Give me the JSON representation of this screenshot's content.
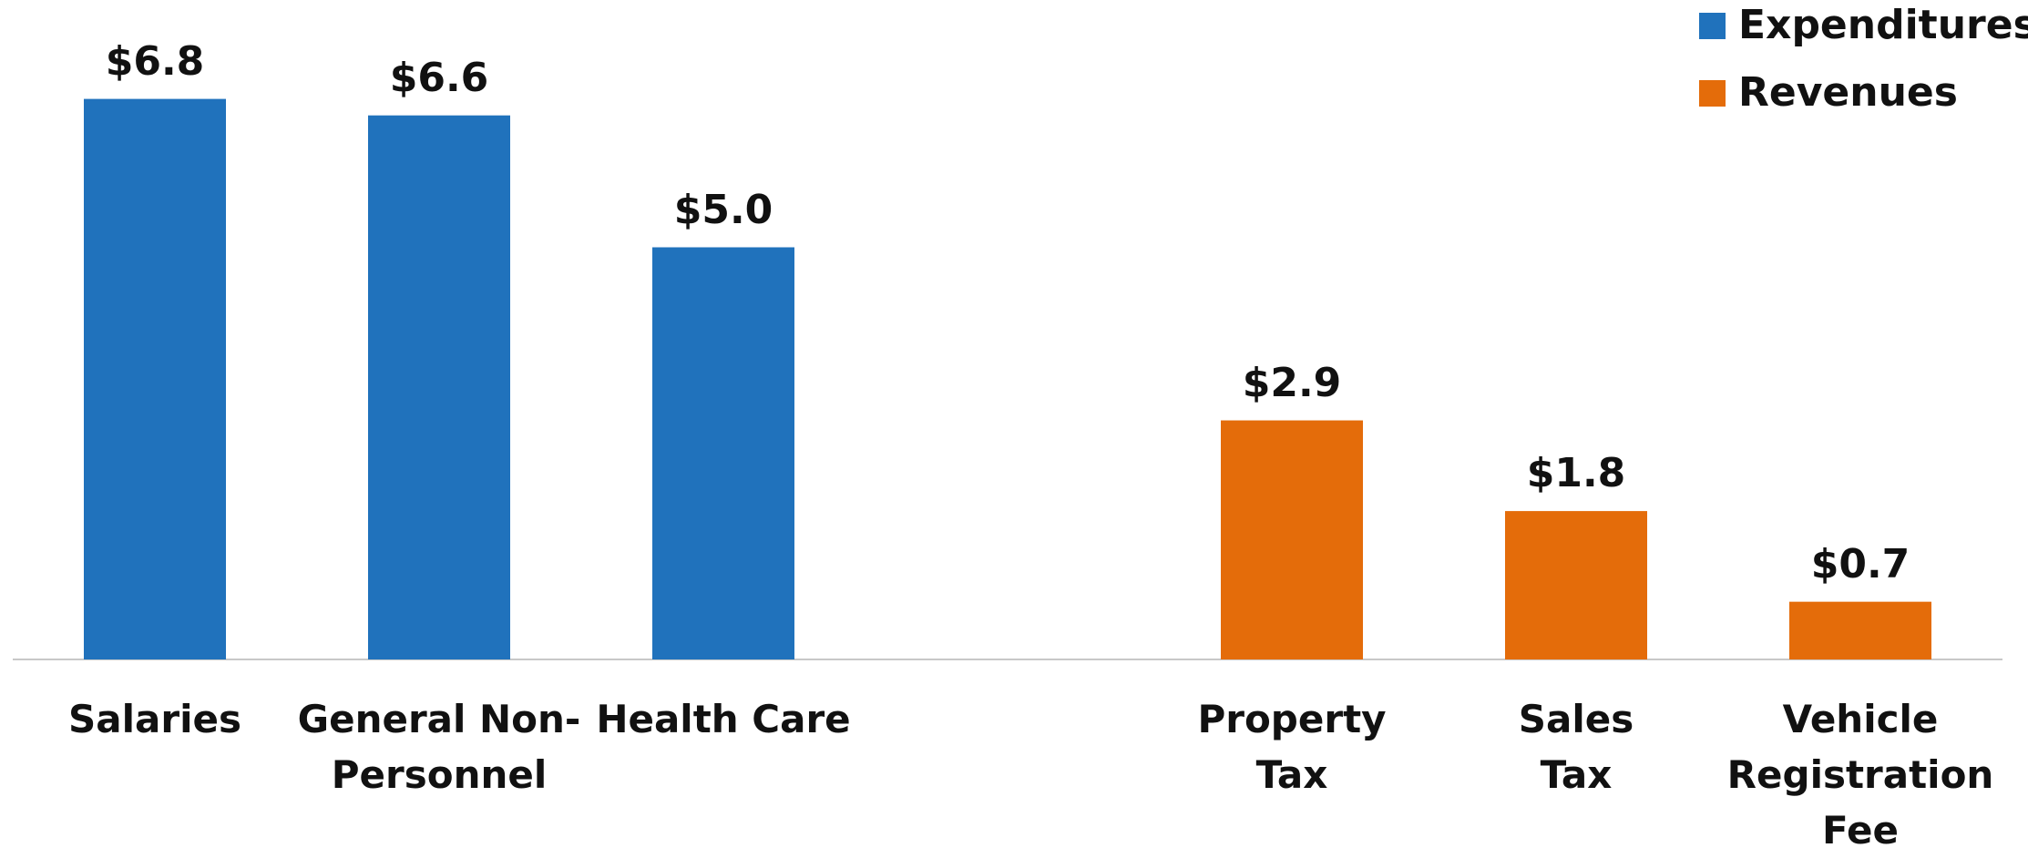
{
  "chart_data": {
    "type": "bar",
    "categories": [
      "Salaries",
      "General Non-\nPersonnel",
      "Health Care",
      null,
      "Property\nTax",
      "Sales\nTax",
      "Vehicle\nRegistration\nFee"
    ],
    "series": [
      {
        "name": "Expenditures",
        "color": "#2072bc",
        "values": [
          6.8,
          6.6,
          5.0,
          null,
          null,
          null,
          null
        ],
        "value_labels": [
          "$6.8",
          "$6.6",
          "$5.0",
          null,
          null,
          null,
          null
        ]
      },
      {
        "name": "Revenues",
        "color": "#e46c0a",
        "values": [
          null,
          null,
          null,
          null,
          2.9,
          1.8,
          0.7
        ],
        "value_labels": [
          null,
          null,
          null,
          null,
          "$2.9",
          "$1.8",
          "$0.7"
        ]
      }
    ],
    "ylim": [
      0,
      8
    ],
    "legend": "top-right"
  }
}
